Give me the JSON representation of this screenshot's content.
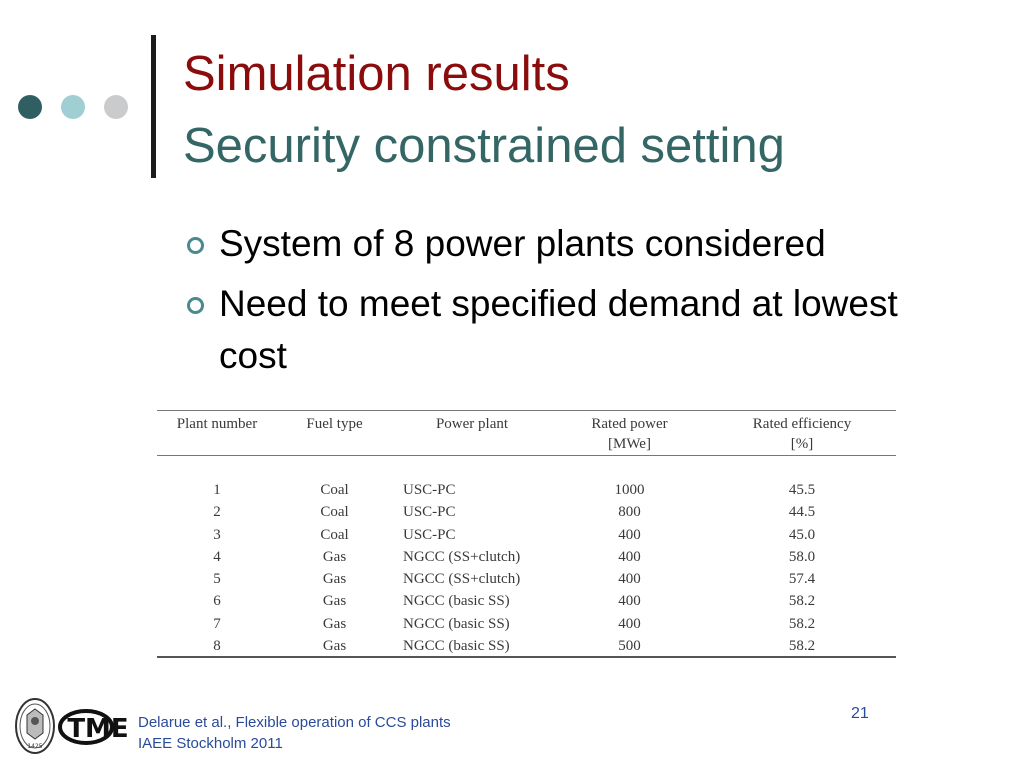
{
  "title": "Simulation results",
  "subtitle": "Security constrained setting",
  "bullets": [
    "System of 8 power plants considered",
    "Need to meet specified demand at lowest cost"
  ],
  "table": {
    "headers": {
      "plant_number": "Plant number",
      "fuel_type": "Fuel type",
      "power_plant": "Power plant",
      "rated_power": "Rated power",
      "rated_power_unit": "[MWe]",
      "rated_efficiency": "Rated efficiency",
      "rated_efficiency_unit": "[%]"
    },
    "rows": [
      {
        "num": "1",
        "fuel": "Coal",
        "plant": "USC-PC",
        "power": "1000",
        "eff": "45.5"
      },
      {
        "num": "2",
        "fuel": "Coal",
        "plant": "USC-PC",
        "power": "800",
        "eff": "44.5"
      },
      {
        "num": "3",
        "fuel": "Coal",
        "plant": "USC-PC",
        "power": "400",
        "eff": "45.0"
      },
      {
        "num": "4",
        "fuel": "Gas",
        "plant": "NGCC (SS+clutch)",
        "power": "400",
        "eff": "58.0"
      },
      {
        "num": "5",
        "fuel": "Gas",
        "plant": "NGCC (SS+clutch)",
        "power": "400",
        "eff": "57.4"
      },
      {
        "num": "6",
        "fuel": "Gas",
        "plant": "NGCC (basic SS)",
        "power": "400",
        "eff": "58.2"
      },
      {
        "num": "7",
        "fuel": "Gas",
        "plant": "NGCC (basic SS)",
        "power": "400",
        "eff": "58.2"
      },
      {
        "num": "8",
        "fuel": "Gas",
        "plant": "NGCC (basic SS)",
        "power": "500",
        "eff": "58.2"
      }
    ]
  },
  "footer": {
    "line1": "Delarue et al., Flexible operation of CCS plants",
    "line2": "IAEE Stockholm 2011"
  },
  "page_number": "21",
  "logos": {
    "seal_year": "1425",
    "tme_text": "TME"
  },
  "colors": {
    "title": "#8b0c0c",
    "subtitle": "#356666",
    "bullet_marker": "#4a8a8d",
    "footer": "#2a4a9a"
  }
}
